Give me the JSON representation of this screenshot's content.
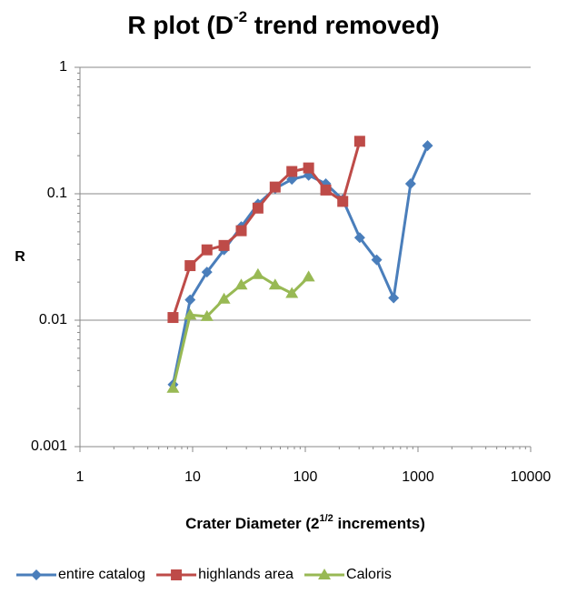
{
  "chart_data": {
    "type": "line",
    "title": [
      "R plot (D",
      "-2",
      " trend removed)"
    ],
    "xlabel": [
      "Crater Diameter (2",
      "1/2",
      " increments)"
    ],
    "ylabel": "R",
    "xlog": true,
    "ylog": true,
    "grid": true,
    "legend": "bottom",
    "xlim": [
      1,
      10000
    ],
    "ylim": [
      0.001,
      1
    ],
    "xticks": [
      1,
      10,
      100,
      1000,
      10000
    ],
    "yticks": [
      0.001,
      0.01,
      0.1,
      1
    ],
    "series": [
      {
        "name": "entire catalog",
        "color": "#4a7ebb",
        "marker": "diamond",
        "x": [
          6.7,
          9.5,
          13.4,
          19,
          27,
          38,
          54,
          76,
          107,
          152,
          215,
          304,
          430,
          608,
          860,
          1216
        ],
        "values": [
          0.0031,
          0.0145,
          0.024,
          0.036,
          0.055,
          0.083,
          0.11,
          0.13,
          0.14,
          0.12,
          0.09,
          0.045,
          0.03,
          0.015,
          0.12,
          0.24
        ]
      },
      {
        "name": "highlands area",
        "color": "#be4b48",
        "marker": "square",
        "x": [
          6.7,
          9.5,
          13.4,
          19,
          27,
          38,
          54,
          76,
          107,
          152,
          215,
          304
        ],
        "values": [
          0.0105,
          0.027,
          0.036,
          0.039,
          0.051,
          0.077,
          0.113,
          0.15,
          0.16,
          0.107,
          0.087,
          0.26
        ]
      },
      {
        "name": "Caloris",
        "color": "#98b954",
        "marker": "triangle",
        "x": [
          6.7,
          9.5,
          13.4,
          19,
          27,
          38,
          54,
          76,
          107
        ],
        "values": [
          0.0029,
          0.011,
          0.0107,
          0.0147,
          0.019,
          0.023,
          0.019,
          0.0163,
          0.022
        ]
      }
    ]
  }
}
